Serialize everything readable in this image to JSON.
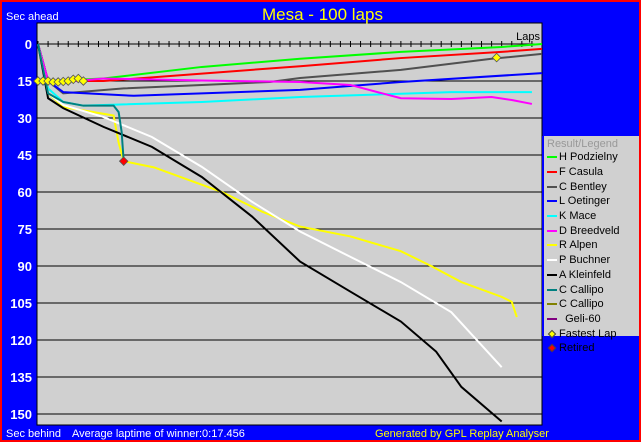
{
  "chart_data": {
    "type": "line",
    "title": "Mesa - 100 laps",
    "ylabel_top": "Sec ahead",
    "ylabel_bottom": "Sec behind",
    "xlabel": "Laps",
    "xlim": [
      0,
      100
    ],
    "ylim": [
      0,
      155
    ],
    "y_inverted": true,
    "yticks": [
      0,
      15,
      30,
      45,
      60,
      75,
      90,
      105,
      120,
      135,
      150
    ],
    "grid": true,
    "legend_title": "Result/Legend",
    "legend_position": "right",
    "series": [
      {
        "name": "H Podzielny",
        "color": "#00ff00",
        "points": [
          [
            0,
            0
          ],
          [
            2,
            15
          ],
          [
            13,
            14
          ],
          [
            32.5,
            9.3
          ],
          [
            52,
            6
          ],
          [
            72,
            3.2
          ],
          [
            92,
            1.2
          ],
          [
            100,
            0
          ]
        ]
      },
      {
        "name": "F Casula",
        "color": "#ff0000",
        "points": [
          [
            0,
            0
          ],
          [
            2,
            15
          ],
          [
            13,
            15
          ],
          [
            32.5,
            12
          ],
          [
            52,
            9
          ],
          [
            72,
            5.7
          ],
          [
            92,
            3.2
          ],
          [
            100,
            2
          ]
        ]
      },
      {
        "name": "C Bentley",
        "color": "#505050",
        "points": [
          [
            0,
            0
          ],
          [
            2,
            15
          ],
          [
            5,
            20
          ],
          [
            17,
            18
          ],
          [
            32.5,
            16.6
          ],
          [
            46,
            15.4
          ],
          [
            52,
            13.8
          ],
          [
            72,
            10.5
          ],
          [
            90,
            6
          ],
          [
            100,
            4
          ]
        ]
      },
      {
        "name": "L Oetinger",
        "color": "#0000ff",
        "points": [
          [
            0,
            0
          ],
          [
            2,
            15
          ],
          [
            5,
            19.5
          ],
          [
            19,
            21
          ],
          [
            32.5,
            20
          ],
          [
            52,
            18.6
          ],
          [
            72,
            15.4
          ],
          [
            100,
            11.8
          ]
        ]
      },
      {
        "name": "K Mace",
        "color": "#00ffff",
        "points": [
          [
            0,
            0
          ],
          [
            2,
            18
          ],
          [
            5,
            23.5
          ],
          [
            9,
            25
          ],
          [
            32.5,
            23.5
          ],
          [
            52,
            21.5
          ],
          [
            82,
            19.5
          ],
          [
            98,
            19.5
          ]
        ]
      },
      {
        "name": "D Breedveld",
        "color": "#ff00ff",
        "points": [
          [
            0,
            0
          ],
          [
            2,
            15
          ],
          [
            5,
            15.4
          ],
          [
            13,
            14
          ],
          [
            32.5,
            14.8
          ],
          [
            52,
            15.4
          ],
          [
            62,
            16.6
          ],
          [
            72,
            22
          ],
          [
            82,
            22.3
          ],
          [
            90,
            21.5
          ],
          [
            94,
            22.7
          ],
          [
            98,
            24.3
          ]
        ]
      },
      {
        "name": "R Alpen",
        "color": "#ffff00",
        "points": [
          [
            0,
            0
          ],
          [
            2,
            20
          ],
          [
            5,
            25.5
          ],
          [
            11,
            27.6
          ],
          [
            15,
            29
          ],
          [
            16,
            40
          ],
          [
            17,
            47.5
          ],
          [
            23,
            50
          ],
          [
            36.5,
            60
          ],
          [
            44.5,
            68
          ],
          [
            52,
            74
          ],
          [
            62,
            78
          ],
          [
            72,
            84
          ],
          [
            78,
            90
          ],
          [
            84,
            96.5
          ],
          [
            92,
            102.5
          ],
          [
            94,
            104.5
          ],
          [
            95,
            110.7
          ]
        ]
      },
      {
        "name": "P Buchner",
        "color": "#ffffff",
        "points": [
          [
            0,
            0
          ],
          [
            2,
            20
          ],
          [
            5,
            24.7
          ],
          [
            13,
            29.6
          ],
          [
            22.6,
            37.7
          ],
          [
            32.5,
            49.8
          ],
          [
            42.5,
            64
          ],
          [
            52,
            76
          ],
          [
            62,
            86.3
          ],
          [
            72,
            96.5
          ],
          [
            82,
            108.7
          ],
          [
            92,
            131
          ]
        ]
      },
      {
        "name": "A Kleinfeld",
        "color": "#000000",
        "points": [
          [
            0,
            0
          ],
          [
            2,
            22
          ],
          [
            5,
            26
          ],
          [
            13,
            33.6
          ],
          [
            22.6,
            41.7
          ],
          [
            32.5,
            53.9
          ],
          [
            42.5,
            70
          ],
          [
            52,
            88.2
          ],
          [
            62,
            100.4
          ],
          [
            72,
            112.5
          ],
          [
            79,
            124.7
          ],
          [
            84,
            139
          ],
          [
            92,
            153
          ]
        ]
      },
      {
        "name": "C Callipo",
        "color": "#008080",
        "points": [
          [
            0,
            0
          ],
          [
            2,
            20
          ],
          [
            5,
            23.5
          ],
          [
            9,
            25
          ],
          [
            15,
            25
          ],
          [
            16,
            27.6
          ],
          [
            16.6,
            35.7
          ],
          [
            17,
            47.5
          ]
        ]
      },
      {
        "name": "C Callipo",
        "color": "#808000",
        "points": []
      },
      {
        "name": "  Geli-60",
        "color": "#800080",
        "points": []
      }
    ],
    "fastest_laps": [
      [
        0,
        15
      ],
      [
        1,
        15
      ],
      [
        2,
        15
      ],
      [
        3,
        15.4
      ],
      [
        4,
        15.4
      ],
      [
        5,
        15.2
      ],
      [
        6,
        15
      ],
      [
        7,
        14.3
      ],
      [
        8,
        14
      ],
      [
        9,
        15
      ],
      [
        91,
        5.5
      ]
    ],
    "retired": [
      [
        17,
        47.5
      ]
    ],
    "marker_legend": [
      {
        "name": "Fastest Lap",
        "color": "#ffff00"
      },
      {
        "name": "Retired",
        "color": "#ff0000"
      }
    ]
  },
  "footer": {
    "avg": "Average laptime of winner:0:17.456",
    "generated": "Generated by GPL Replay Analyser"
  }
}
